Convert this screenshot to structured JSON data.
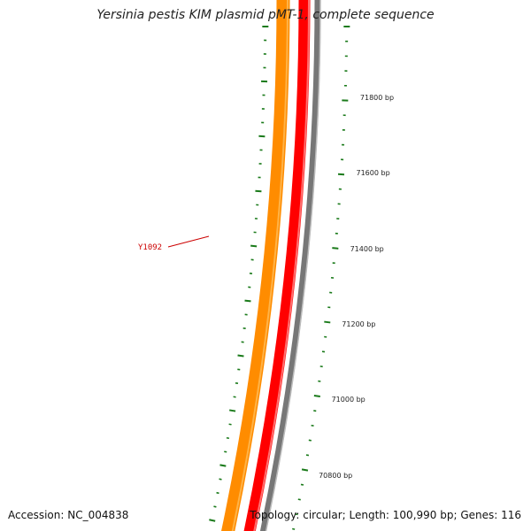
{
  "map": {
    "title": "Yersinia pestis KIM plasmid pMT-1, complete sequence",
    "accession_label": "Accession: NC_004838",
    "summary_label": "Topology: circular; Length: 100,990 bp; Genes: 116",
    "gene_label": "Y1092",
    "bp_ticks": [
      {
        "label": "71800 bp",
        "value": 71800
      },
      {
        "label": "71600 bp",
        "value": 71600
      },
      {
        "label": "71400 bp",
        "value": 71400
      },
      {
        "label": "71200 bp",
        "value": 71200
      },
      {
        "label": "71000 bp",
        "value": 71000
      },
      {
        "label": "70800 bp",
        "value": 70800
      }
    ],
    "colors": {
      "cds_track": "#ff8c00",
      "gene_track": "#ff0000",
      "backbone": "#777777",
      "tick_marks": "#1a7a1a",
      "gene_label": "#cc0000"
    }
  }
}
